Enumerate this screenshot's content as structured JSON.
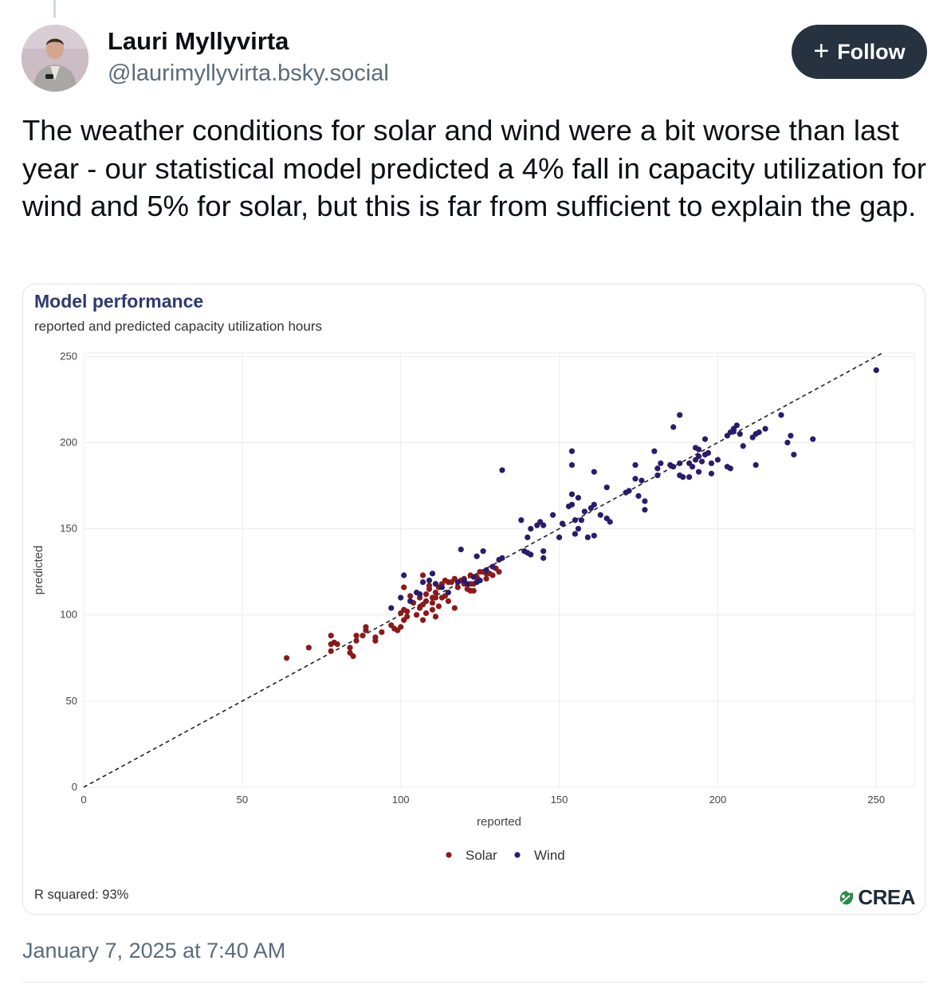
{
  "post": {
    "author_name": "Lauri Myllyvirta",
    "author_handle": "@laurimyllyvirta.bsky.social",
    "follow_label": "Follow",
    "text": "The weather conditions for solar and wind were a bit worse than last year - our statistical model predicted a 4% fall in capacity utilization for wind and 5% for solar, but this is far from sufficient to explain the gap.",
    "timestamp": "January 7, 2025 at 7:40 AM"
  },
  "figure": {
    "r_squared_label": "R squared: 93%",
    "logo_text": "CREA"
  },
  "chart_data": {
    "type": "scatter",
    "title": "Model performance",
    "subtitle": "reported and predicted capacity utilization hours",
    "xlabel": "reported",
    "ylabel": "predicted",
    "xlim": [
      0,
      262
    ],
    "ylim": [
      0,
      252
    ],
    "xticks": [
      0,
      50,
      100,
      150,
      200,
      250
    ],
    "yticks": [
      0,
      50,
      100,
      150,
      200,
      250
    ],
    "grid": true,
    "reference_line": "y = x (dashed)",
    "legend_position": "bottom",
    "series": [
      {
        "name": "Solar",
        "color": "#8b1a1a",
        "points": [
          [
            64,
            75
          ],
          [
            71,
            81
          ],
          [
            78,
            79
          ],
          [
            78,
            83
          ],
          [
            78,
            88
          ],
          [
            79,
            84
          ],
          [
            80,
            83
          ],
          [
            84,
            81
          ],
          [
            84,
            78
          ],
          [
            85,
            76
          ],
          [
            86,
            85
          ],
          [
            86,
            88
          ],
          [
            88,
            88
          ],
          [
            89,
            91
          ],
          [
            89,
            93
          ],
          [
            92,
            87
          ],
          [
            92,
            85
          ],
          [
            94,
            90
          ],
          [
            97,
            94
          ],
          [
            98,
            92
          ],
          [
            99,
            91
          ],
          [
            100,
            93
          ],
          [
            100,
            101
          ],
          [
            101,
            97
          ],
          [
            101,
            103
          ],
          [
            101,
            116
          ],
          [
            102,
            99
          ],
          [
            102,
            102
          ],
          [
            103,
            111
          ],
          [
            104,
            107
          ],
          [
            105,
            100
          ],
          [
            106,
            104
          ],
          [
            106,
            112
          ],
          [
            106,
            110
          ],
          [
            107,
            97
          ],
          [
            107,
            106
          ],
          [
            107,
            123
          ],
          [
            108,
            101
          ],
          [
            108,
            108
          ],
          [
            108,
            112
          ],
          [
            109,
            115
          ],
          [
            109,
            117
          ],
          [
            110,
            103
          ],
          [
            110,
            107
          ],
          [
            110,
            110
          ],
          [
            111,
            99
          ],
          [
            111,
            110
          ],
          [
            111,
            113
          ],
          [
            111,
            118
          ],
          [
            112,
            105
          ],
          [
            112,
            116
          ],
          [
            113,
            110
          ],
          [
            113,
            118
          ],
          [
            114,
            111
          ],
          [
            114,
            120
          ],
          [
            115,
            119
          ],
          [
            115,
            108
          ],
          [
            116,
            119
          ],
          [
            117,
            104
          ],
          [
            117,
            121
          ],
          [
            118,
            116
          ],
          [
            119,
            120
          ],
          [
            120,
            121
          ],
          [
            120,
            118
          ],
          [
            121,
            115
          ],
          [
            122,
            114
          ],
          [
            122,
            118
          ],
          [
            122,
            123
          ],
          [
            123,
            118
          ],
          [
            123,
            114
          ],
          [
            124,
            122
          ],
          [
            125,
            125
          ],
          [
            126,
            125
          ],
          [
            127,
            124
          ],
          [
            127,
            121
          ],
          [
            128,
            124
          ],
          [
            129,
            123
          ],
          [
            130,
            127
          ],
          [
            131,
            125
          ]
        ]
      },
      {
        "name": "Wind",
        "color": "#2b1b6b",
        "points": [
          [
            97,
            104
          ],
          [
            100,
            110
          ],
          [
            101,
            123
          ],
          [
            103,
            108
          ],
          [
            105,
            113
          ],
          [
            106,
            112
          ],
          [
            107,
            119
          ],
          [
            109,
            120
          ],
          [
            110,
            124
          ],
          [
            111,
            118
          ],
          [
            113,
            116
          ],
          [
            115,
            113
          ],
          [
            118,
            119
          ],
          [
            119,
            138
          ],
          [
            120,
            120
          ],
          [
            121,
            118
          ],
          [
            123,
            122
          ],
          [
            124,
            119
          ],
          [
            124,
            134
          ],
          [
            125,
            120
          ],
          [
            126,
            137
          ],
          [
            127,
            126
          ],
          [
            129,
            128
          ],
          [
            131,
            132
          ],
          [
            132,
            133
          ],
          [
            132,
            184
          ],
          [
            138,
            155
          ],
          [
            139,
            137
          ],
          [
            140,
            136
          ],
          [
            140,
            145
          ],
          [
            141,
            135
          ],
          [
            141,
            150
          ],
          [
            143,
            152
          ],
          [
            144,
            154
          ],
          [
            145,
            133
          ],
          [
            145,
            137
          ],
          [
            145,
            152
          ],
          [
            148,
            158
          ],
          [
            150,
            145
          ],
          [
            151,
            153
          ],
          [
            153,
            163
          ],
          [
            154,
            164
          ],
          [
            154,
            170
          ],
          [
            154,
            187
          ],
          [
            154,
            195
          ],
          [
            155,
            147
          ],
          [
            155,
            155
          ],
          [
            156,
            150
          ],
          [
            156,
            168
          ],
          [
            157,
            155
          ],
          [
            158,
            160
          ],
          [
            159,
            145
          ],
          [
            160,
            162
          ],
          [
            161,
            164
          ],
          [
            161,
            183
          ],
          [
            161,
            146
          ],
          [
            163,
            158
          ],
          [
            165,
            174
          ],
          [
            165,
            156
          ],
          [
            166,
            154
          ],
          [
            171,
            171
          ],
          [
            172,
            172
          ],
          [
            174,
            187
          ],
          [
            174,
            179
          ],
          [
            175,
            169
          ],
          [
            176,
            178
          ],
          [
            177,
            161
          ],
          [
            177,
            166
          ],
          [
            180,
            195
          ],
          [
            181,
            185
          ],
          [
            181,
            181
          ],
          [
            182,
            188
          ],
          [
            185,
            187
          ],
          [
            186,
            209
          ],
          [
            186,
            186
          ],
          [
            188,
            216
          ],
          [
            188,
            181
          ],
          [
            188,
            188
          ],
          [
            189,
            180
          ],
          [
            191,
            180
          ],
          [
            191,
            188
          ],
          [
            192,
            186
          ],
          [
            193,
            190
          ],
          [
            193,
            197
          ],
          [
            194,
            183
          ],
          [
            194,
            192
          ],
          [
            194,
            196
          ],
          [
            195,
            189
          ],
          [
            196,
            193
          ],
          [
            196,
            202
          ],
          [
            197,
            194
          ],
          [
            198,
            188
          ],
          [
            198,
            182
          ],
          [
            200,
            190
          ],
          [
            203,
            186
          ],
          [
            203,
            204
          ],
          [
            204,
            185
          ],
          [
            204,
            206
          ],
          [
            205,
            207
          ],
          [
            205,
            208
          ],
          [
            206,
            210
          ],
          [
            207,
            205
          ],
          [
            208,
            198
          ],
          [
            211,
            203
          ],
          [
            212,
            187
          ],
          [
            212,
            205
          ],
          [
            213,
            206
          ],
          [
            215,
            208
          ],
          [
            220,
            216
          ],
          [
            222,
            200
          ],
          [
            223,
            204
          ],
          [
            224,
            193
          ],
          [
            230,
            202
          ],
          [
            250,
            242
          ]
        ]
      }
    ]
  }
}
